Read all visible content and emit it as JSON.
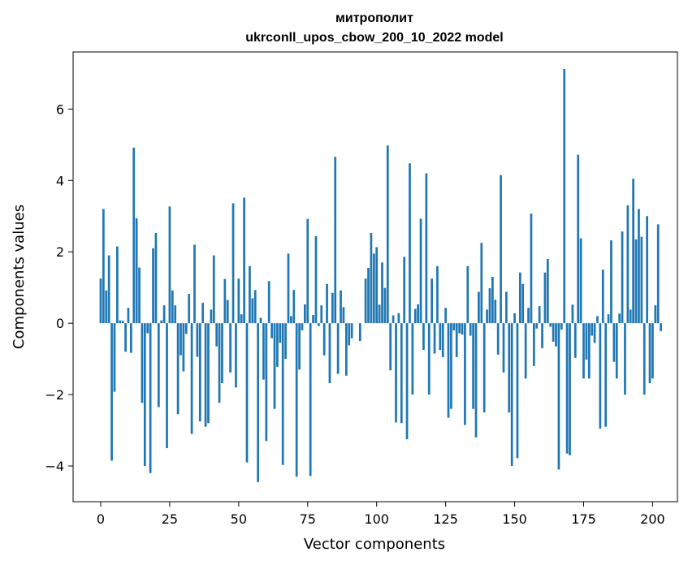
{
  "chart_data": {
    "type": "bar",
    "title_line1": "митрополит",
    "title_line2": "ukrconll_upos_cbow_200_10_2022 model",
    "xlabel": "Vector components",
    "ylabel": "Components values",
    "xlim": [
      -10,
      209
    ],
    "ylim": [
      -5.0,
      7.6
    ],
    "xticks": [
      0,
      25,
      50,
      75,
      100,
      125,
      150,
      175,
      200
    ],
    "yticks": [
      -4,
      -2,
      0,
      2,
      4,
      6
    ],
    "grid": false,
    "bar_color": "#1f77b4",
    "values": [
      1.25,
      3.2,
      0.92,
      1.9,
      -3.85,
      -1.92,
      2.15,
      0.08,
      0.07,
      -0.8,
      0.43,
      -0.83,
      4.92,
      2.94,
      1.56,
      -2.23,
      -4.0,
      -0.28,
      -4.2,
      2.1,
      2.53,
      -2.35,
      0.08,
      0.5,
      -3.5,
      3.27,
      0.92,
      0.5,
      -2.55,
      -0.9,
      -1.35,
      -0.3,
      0.82,
      -3.1,
      2.2,
      -0.94,
      -2.75,
      0.57,
      -2.9,
      -2.8,
      0.38,
      1.9,
      -0.65,
      -2.23,
      -1.68,
      1.24,
      0.65,
      -1.38,
      3.36,
      -1.8,
      1.25,
      0.25,
      3.52,
      -3.9,
      1.6,
      0.7,
      0.93,
      -4.45,
      0.15,
      -1.58,
      -3.3,
      1.18,
      -0.42,
      -2.4,
      -1.22,
      -0.55,
      -3.97,
      -1.0,
      1.95,
      0.2,
      0.93,
      -4.3,
      -1.3,
      -0.2,
      0.53,
      2.92,
      -4.28,
      0.23,
      2.44,
      -0.08,
      0.5,
      -0.9,
      1.1,
      -1.68,
      0.85,
      4.66,
      -1.42,
      0.92,
      0.45,
      -1.47,
      -0.62,
      -0.42,
      0.0,
      0.0,
      -0.5,
      0.0,
      1.25,
      1.55,
      2.53,
      1.95,
      2.13,
      0.52,
      1.7,
      0.99,
      4.98,
      -1.32,
      0.22,
      -2.78,
      0.28,
      -2.8,
      1.86,
      -3.25,
      4.48,
      -2.0,
      0.4,
      0.53,
      2.93,
      -0.75,
      4.2,
      -2.0,
      1.25,
      -0.85,
      1.6,
      -0.75,
      -0.95,
      0.43,
      -2.65,
      -2.4,
      -0.2,
      -0.95,
      -0.28,
      -0.32,
      -2.85,
      1.6,
      -0.35,
      -2.4,
      -3.2,
      0.88,
      2.25,
      -2.5,
      0.38,
      0.98,
      1.3,
      0.66,
      -0.88,
      4.15,
      -1.38,
      0.88,
      -2.5,
      -4.0,
      0.28,
      -3.78,
      1.42,
      1.1,
      -1.55,
      0.43,
      3.07,
      -1.2,
      -0.15,
      0.48,
      -0.7,
      1.42,
      1.8,
      -0.1,
      -0.52,
      -0.65,
      -4.1,
      -0.18,
      7.12,
      -3.65,
      -3.7,
      0.52,
      -0.97,
      4.72,
      2.38,
      -1.55,
      -1.02,
      -1.55,
      -0.35,
      -0.55,
      0.2,
      -2.95,
      1.5,
      -2.9,
      0.25,
      2.32,
      -1.08,
      -1.55,
      0.27,
      2.57,
      -2.0,
      3.3,
      0.38,
      4.05,
      2.35,
      3.2,
      2.42,
      -2.0,
      3.0,
      -1.68,
      -1.55,
      0.5,
      2.77,
      -0.22
    ]
  }
}
